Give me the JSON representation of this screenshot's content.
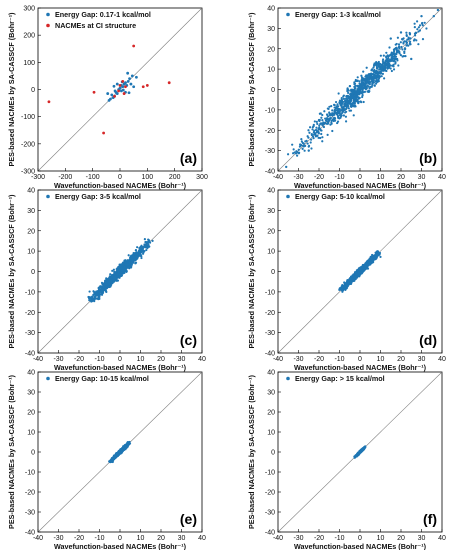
{
  "figure": {
    "xlabel": "Wavefunction-based NACMEs (Bohr⁻¹)",
    "ylabel": "PES-based NACMEs by SA-CASSCF (Bohr⁻¹)"
  },
  "colors": {
    "series_blue": "#1f77b4",
    "series_red": "#d62728",
    "diagonal": "#808080"
  },
  "chart_data": [
    {
      "type": "scatter",
      "panel_label": "(a)",
      "xlim": [
        -300,
        300
      ],
      "ylim": [
        -300,
        300
      ],
      "xticks": [
        -300,
        -200,
        -100,
        0,
        100,
        200,
        300
      ],
      "yticks": [
        -300,
        -200,
        -100,
        0,
        100,
        200,
        300
      ],
      "legend_position": "top-left",
      "grid": false,
      "diagonal": true,
      "series": [
        {
          "name": "Energy Gap: 0.17-1 kcal/mol",
          "color": "#1f77b4",
          "points": [
            [
              -30,
              -20
            ],
            [
              -25,
              -30
            ],
            [
              -20,
              -25
            ],
            [
              -15,
              -10
            ],
            [
              -10,
              -15
            ],
            [
              -5,
              0
            ],
            [
              0,
              5
            ],
            [
              5,
              -5
            ],
            [
              10,
              10
            ],
            [
              15,
              20
            ],
            [
              20,
              25
            ],
            [
              25,
              15
            ],
            [
              30,
              30
            ],
            [
              35,
              40
            ],
            [
              40,
              20
            ],
            [
              45,
              50
            ],
            [
              50,
              10
            ],
            [
              -40,
              -40
            ],
            [
              -35,
              -35
            ],
            [
              60,
              45
            ],
            [
              20,
              -10
            ],
            [
              -10,
              20
            ],
            [
              5,
              15
            ],
            [
              12,
              -2
            ],
            [
              -18,
              -5
            ],
            [
              28,
              60
            ],
            [
              33,
              -12
            ],
            [
              -45,
              -15
            ],
            [
              8,
              28
            ],
            [
              -22,
              12
            ]
          ]
        },
        {
          "name": "NACMEs at CI structure",
          "color": "#d62728",
          "points": [
            [
              -260,
              -45
            ],
            [
              -60,
              -160
            ],
            [
              -95,
              -10
            ],
            [
              -20,
              -25
            ],
            [
              -5,
              -5
            ],
            [
              15,
              -15
            ],
            [
              50,
              160
            ],
            [
              20,
              10
            ],
            [
              85,
              10
            ],
            [
              100,
              15
            ],
            [
              180,
              25
            ],
            [
              0,
              15
            ],
            [
              10,
              30
            ]
          ]
        }
      ]
    },
    {
      "type": "scatter",
      "panel_label": "(b)",
      "xlim": [
        -40,
        40
      ],
      "ylim": [
        -40,
        40
      ],
      "xticks": [
        -40,
        -30,
        -20,
        -10,
        0,
        10,
        20,
        30,
        40
      ],
      "yticks": [
        -40,
        -30,
        -20,
        -10,
        0,
        10,
        20,
        30,
        40
      ],
      "legend_position": "top-left",
      "grid": false,
      "diagonal": true,
      "series": [
        {
          "name": "Energy Gap: 1-3 kcal/mol",
          "color": "#1f77b4",
          "spread": 4.0,
          "point_range": [
            -30,
            30
          ],
          "n_points": 900
        }
      ],
      "outliers": [
        [
          -36,
          -38
        ],
        [
          36,
          36
        ],
        [
          30,
          36
        ],
        [
          25,
          15
        ],
        [
          -25,
          -30
        ],
        [
          20,
          28
        ],
        [
          -20,
          -15
        ],
        [
          15,
          25
        ],
        [
          38,
          39
        ]
      ]
    },
    {
      "type": "scatter",
      "panel_label": "(c)",
      "xlim": [
        -40,
        40
      ],
      "ylim": [
        -40,
        40
      ],
      "xticks": [
        -40,
        -30,
        -20,
        -10,
        0,
        10,
        20,
        30,
        40
      ],
      "yticks": [
        -40,
        -30,
        -20,
        -10,
        0,
        10,
        20,
        30,
        40
      ],
      "legend_position": "top-left",
      "grid": false,
      "diagonal": true,
      "series": [
        {
          "name": "Energy Gap: 3-5 kcal/mol",
          "color": "#1f77b4",
          "spread": 1.8,
          "point_range": [
            -14,
            14
          ],
          "n_points": 1200
        }
      ]
    },
    {
      "type": "scatter",
      "panel_label": "(d)",
      "xlim": [
        -40,
        40
      ],
      "ylim": [
        -40,
        40
      ],
      "xticks": [
        -40,
        -30,
        -20,
        -10,
        0,
        10,
        20,
        30,
        40
      ],
      "yticks": [
        -40,
        -30,
        -20,
        -10,
        0,
        10,
        20,
        30,
        40
      ],
      "legend_position": "top-left",
      "grid": false,
      "diagonal": true,
      "series": [
        {
          "name": "Energy Gap: 5-10 kcal/mol",
          "color": "#1f77b4",
          "spread": 1.1,
          "point_range": [
            -9,
            9
          ],
          "n_points": 1200
        }
      ]
    },
    {
      "type": "scatter",
      "panel_label": "(e)",
      "xlim": [
        -40,
        40
      ],
      "ylim": [
        -40,
        40
      ],
      "xticks": [
        -40,
        -30,
        -20,
        -10,
        0,
        10,
        20,
        30,
        40
      ],
      "yticks": [
        -40,
        -30,
        -20,
        -10,
        0,
        10,
        20,
        30,
        40
      ],
      "legend_position": "top-left",
      "grid": false,
      "diagonal": true,
      "series": [
        {
          "name": "Energy Gap: 10-15 kcal/mol",
          "color": "#1f77b4",
          "spread": 0.6,
          "point_range": [
            -4.5,
            4.5
          ],
          "n_points": 800
        }
      ]
    },
    {
      "type": "scatter",
      "panel_label": "(f)",
      "xlim": [
        -40,
        40
      ],
      "ylim": [
        -40,
        40
      ],
      "xticks": [
        -40,
        -30,
        -20,
        -10,
        0,
        10,
        20,
        30,
        40
      ],
      "yticks": [
        -40,
        -30,
        -20,
        -10,
        0,
        10,
        20,
        30,
        40
      ],
      "legend_position": "top-left",
      "grid": false,
      "diagonal": true,
      "series": [
        {
          "name": "Energy Gap: > 15 kcal/mol",
          "color": "#1f77b4",
          "spread": 0.35,
          "point_range": [
            -2.5,
            2.5
          ],
          "n_points": 500
        }
      ]
    }
  ]
}
